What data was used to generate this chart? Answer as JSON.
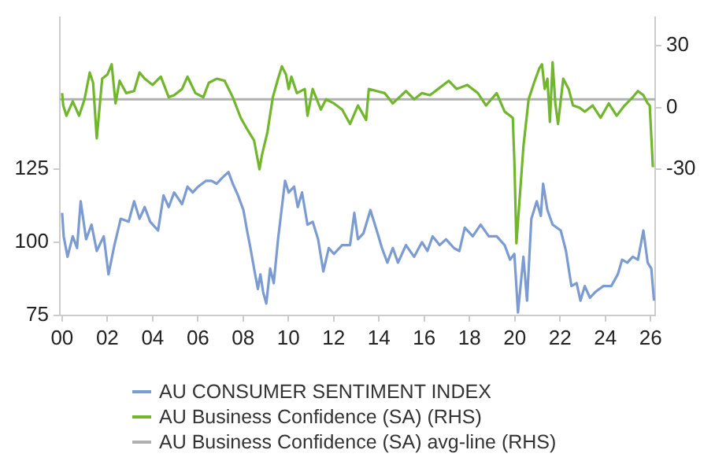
{
  "chart_data": {
    "type": "line",
    "xlim": [
      1999.9,
      2026.2
    ],
    "xticks": [
      {
        "value": 2000,
        "label": "00"
      },
      {
        "value": 2002,
        "label": "02"
      },
      {
        "value": 2004,
        "label": "04"
      },
      {
        "value": 2006,
        "label": "06"
      },
      {
        "value": 2008,
        "label": "08"
      },
      {
        "value": 2010,
        "label": "10"
      },
      {
        "value": 2012,
        "label": "12"
      },
      {
        "value": 2014,
        "label": "14"
      },
      {
        "value": 2016,
        "label": "16"
      },
      {
        "value": 2018,
        "label": "18"
      },
      {
        "value": 2020,
        "label": "20"
      },
      {
        "value": 2022,
        "label": "22"
      },
      {
        "value": 2024,
        "label": "24"
      },
      {
        "value": 2026,
        "label": "26"
      }
    ],
    "ylim": [
      75,
      177
    ],
    "yticks": [
      75,
      100,
      125
    ],
    "y2lim": [
      -101,
      44
    ],
    "y2ticks": [
      -30,
      0,
      30
    ],
    "grid": false,
    "legend": "bottom",
    "series": [
      {
        "name": "AU CONSUMER SENTIMENT INDEX",
        "color": "#7b9bd1",
        "x": [
          2000.0,
          2000.07,
          2000.24,
          2000.47,
          2000.66,
          2000.82,
          2001.06,
          2001.3,
          2001.53,
          2001.84,
          2002.05,
          2002.31,
          2002.59,
          2002.94,
          2003.18,
          2003.42,
          2003.65,
          2003.89,
          2004.24,
          2004.48,
          2004.71,
          2004.95,
          2005.3,
          2005.54,
          2005.77,
          2006.01,
          2006.36,
          2006.6,
          2006.83,
          2007.07,
          2007.35,
          2007.54,
          2007.77,
          2008.01,
          2008.17,
          2008.32,
          2008.48,
          2008.65,
          2008.76,
          2008.88,
          2009.02,
          2009.19,
          2009.35,
          2009.54,
          2009.71,
          2009.85,
          2010.01,
          2010.25,
          2010.41,
          2010.6,
          2010.84,
          2011.07,
          2011.31,
          2011.54,
          2011.78,
          2012.01,
          2012.37,
          2012.72,
          2012.91,
          2013.07,
          2013.31,
          2013.62,
          2013.9,
          2014.13,
          2014.37,
          2014.61,
          2014.84,
          2015.19,
          2015.55,
          2015.9,
          2016.14,
          2016.37,
          2016.68,
          2016.96,
          2017.31,
          2017.55,
          2017.79,
          2018.14,
          2018.49,
          2018.85,
          2019.2,
          2019.55,
          2019.79,
          2019.98,
          2020.14,
          2020.38,
          2020.54,
          2020.73,
          2020.97,
          2021.15,
          2021.25,
          2021.44,
          2021.67,
          2022.03,
          2022.26,
          2022.5,
          2022.73,
          2022.9,
          2023.09,
          2023.32,
          2023.56,
          2023.91,
          2024.26,
          2024.55,
          2024.74,
          2024.97,
          2025.21,
          2025.44,
          2025.68,
          2025.87,
          2026.03,
          2026.15
        ],
        "values": [
          110,
          102,
          95,
          102,
          98,
          114,
          101,
          106,
          97,
          102,
          89,
          99,
          108,
          107,
          114,
          108,
          112,
          107,
          104,
          116,
          112,
          117,
          113,
          119,
          117,
          119,
          121,
          121,
          120,
          122,
          124,
          120,
          116,
          111,
          104,
          98,
          91,
          84,
          89,
          83,
          79,
          91,
          86,
          101,
          112,
          121,
          117,
          119,
          112,
          117,
          106,
          107,
          101,
          90,
          98,
          96,
          99,
          99,
          110,
          101,
          103,
          111,
          104,
          98,
          93,
          98,
          93,
          99,
          95,
          100,
          97,
          102,
          99,
          101,
          98,
          97,
          105,
          102,
          106,
          102,
          102,
          99,
          94,
          96,
          76,
          95,
          80,
          108,
          114,
          109,
          120,
          111,
          106,
          104,
          97,
          85,
          86,
          80,
          85,
          81,
          83,
          85,
          85,
          89,
          94,
          93,
          95,
          94,
          104,
          93,
          91,
          80
        ]
      },
      {
        "name": "AU Business Confidence (SA)  (RHS)",
        "color": "#72b62e",
        "axis": "y2",
        "x": [
          2000.0,
          2000.05,
          2000.19,
          2000.47,
          2000.75,
          2000.99,
          2001.22,
          2001.37,
          2001.53,
          2001.77,
          2002.0,
          2002.19,
          2002.36,
          2002.54,
          2002.83,
          2003.18,
          2003.42,
          2003.65,
          2004.0,
          2004.36,
          2004.71,
          2004.95,
          2005.3,
          2005.54,
          2005.89,
          2006.24,
          2006.48,
          2006.83,
          2007.18,
          2007.54,
          2007.89,
          2008.2,
          2008.48,
          2008.72,
          2008.83,
          2009.07,
          2009.31,
          2009.54,
          2009.71,
          2009.89,
          2010.01,
          2010.13,
          2010.37,
          2010.72,
          2010.84,
          2011.07,
          2011.43,
          2011.66,
          2012.01,
          2012.37,
          2012.72,
          2013.07,
          2013.43,
          2013.55,
          2013.9,
          2014.25,
          2014.61,
          2015.19,
          2015.55,
          2015.9,
          2016.25,
          2016.61,
          2017.08,
          2017.43,
          2017.9,
          2018.37,
          2018.73,
          2019.2,
          2019.55,
          2019.91,
          2019.98,
          2020.07,
          2020.38,
          2020.61,
          2020.85,
          2021.08,
          2021.2,
          2021.32,
          2021.44,
          2021.55,
          2021.67,
          2021.79,
          2021.91,
          2022.14,
          2022.38,
          2022.57,
          2022.85,
          2023.09,
          2023.44,
          2023.79,
          2024.15,
          2024.5,
          2024.85,
          2025.21,
          2025.44,
          2025.68,
          2025.87,
          2025.96,
          2026.1
        ],
        "values": [
          7,
          1,
          -4,
          3,
          -4,
          4,
          17,
          12,
          -15,
          14,
          16,
          21,
          2,
          13,
          7,
          8,
          17,
          14,
          11,
          15,
          5,
          6,
          9,
          15,
          7,
          5,
          12,
          14,
          13,
          5,
          -5,
          -11,
          -16,
          -30,
          -23,
          -12,
          5,
          14,
          20,
          16,
          9,
          15,
          7,
          9,
          -4,
          9,
          -1,
          4,
          2,
          -1,
          -8,
          1,
          -6,
          9,
          8,
          7,
          2,
          8,
          4,
          7,
          6,
          9,
          13,
          9,
          11,
          7,
          1,
          7,
          -2,
          -5,
          -26,
          -66,
          -19,
          4,
          12,
          19,
          21,
          9,
          14,
          -7,
          22,
          2,
          -8,
          14,
          9,
          1,
          0,
          -2,
          1,
          -5,
          2,
          -4,
          1,
          5,
          8,
          6,
          2,
          1,
          -29
        ]
      }
    ],
    "ref_lines": [
      {
        "axis": "y2",
        "value": 4,
        "label": "AU Business Confidence (SA) avg-line (RHS)",
        "color": "#b0b0b0"
      }
    ]
  }
}
